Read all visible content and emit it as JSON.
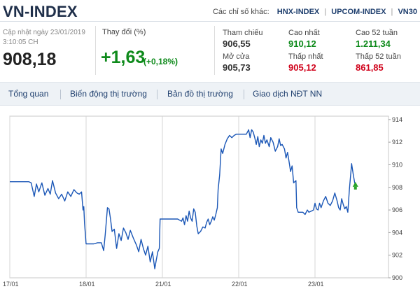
{
  "header": {
    "title": "VN-INDEX",
    "other_label": "Các chỉ số khác:",
    "links": [
      "HNX-INDEX",
      "UPCOM-INDEX",
      "VN30"
    ]
  },
  "summary": {
    "updated_line1": "Cập nhật ngày 23/01/2019",
    "updated_line2": "3:10:05 CH",
    "current_value": "908,18",
    "change_label": "Thay đổi (%)",
    "change_value": "+1,63",
    "change_pct": "(+0,18%)",
    "stats": [
      {
        "label": "Tham chiếu",
        "value": "906,55",
        "trend": "neutral"
      },
      {
        "label": "Cao nhất",
        "value": "910,12",
        "trend": "up"
      },
      {
        "label": "Cao 52 tuần",
        "value": "1.211,34",
        "trend": "up"
      },
      {
        "label": "Mở cửa",
        "value": "905,73",
        "trend": "neutral"
      },
      {
        "label": "Thấp nhất",
        "value": "905,12",
        "trend": "down"
      },
      {
        "label": "Thấp 52 tuần",
        "value": "861,85",
        "trend": "down"
      }
    ]
  },
  "tabs": [
    "Tổng quan",
    "Biến động thị trường",
    "Bản đồ thị trường",
    "Giao dịch NĐT NN"
  ],
  "colors": {
    "line": "#1a56b6",
    "up": "#0e8a1b",
    "down": "#d0021b",
    "marker": "#2aa52a"
  },
  "chart_data": {
    "type": "line",
    "x_categories": [
      "17/01",
      "18/01",
      "21/01",
      "22/01",
      "23/01"
    ],
    "yticks": [
      900,
      902,
      904,
      906,
      908,
      910,
      912,
      914
    ],
    "ylim": [
      900,
      914.3
    ],
    "grid": "vertical",
    "series": [
      {
        "values": [
          [
            0.0,
            908.5
          ],
          [
            0.05,
            908.5
          ],
          [
            0.1,
            908.5
          ],
          [
            0.15,
            908.5
          ],
          [
            0.2,
            908.5
          ],
          [
            0.25,
            908.5
          ],
          [
            0.28,
            908.4
          ],
          [
            0.32,
            907.2
          ],
          [
            0.35,
            908.3
          ],
          [
            0.38,
            907.6
          ],
          [
            0.42,
            908.4
          ],
          [
            0.46,
            907.3
          ],
          [
            0.5,
            907.9
          ],
          [
            0.53,
            907.4
          ],
          [
            0.56,
            908.6
          ],
          [
            0.6,
            907.5
          ],
          [
            0.64,
            907.0
          ],
          [
            0.68,
            907.4
          ],
          [
            0.72,
            906.8
          ],
          [
            0.76,
            907.6
          ],
          [
            0.8,
            907.2
          ],
          [
            0.84,
            907.8
          ],
          [
            0.88,
            907.5
          ],
          [
            0.91,
            907.4
          ],
          [
            0.94,
            907.6
          ],
          [
            0.96,
            906.0
          ],
          [
            0.97,
            906.3
          ],
          [
            0.98,
            904.8
          ],
          [
            1.0,
            903.0
          ],
          [
            1.02,
            903.0
          ],
          [
            1.06,
            903.0
          ],
          [
            1.1,
            903.0
          ],
          [
            1.15,
            903.1
          ],
          [
            1.2,
            903.1
          ],
          [
            1.23,
            902.4
          ],
          [
            1.25,
            903.8
          ],
          [
            1.28,
            906.2
          ],
          [
            1.3,
            906.1
          ],
          [
            1.32,
            905.2
          ],
          [
            1.34,
            904.1
          ],
          [
            1.37,
            904.3
          ],
          [
            1.4,
            902.6
          ],
          [
            1.43,
            903.9
          ],
          [
            1.46,
            903.3
          ],
          [
            1.49,
            904.4
          ],
          [
            1.52,
            904.0
          ],
          [
            1.55,
            903.4
          ],
          [
            1.58,
            904.2
          ],
          [
            1.62,
            903.5
          ],
          [
            1.66,
            902.9
          ],
          [
            1.69,
            902.3
          ],
          [
            1.72,
            903.4
          ],
          [
            1.75,
            902.6
          ],
          [
            1.78,
            902.0
          ],
          [
            1.81,
            902.8
          ],
          [
            1.84,
            901.4
          ],
          [
            1.87,
            902.3
          ],
          [
            1.9,
            900.8
          ],
          [
            1.92,
            901.6
          ],
          [
            1.94,
            902.3
          ],
          [
            1.96,
            902.6
          ],
          [
            1.97,
            905.2
          ],
          [
            2.0,
            905.2
          ],
          [
            2.05,
            905.2
          ],
          [
            2.1,
            905.2
          ],
          [
            2.15,
            905.2
          ],
          [
            2.2,
            905.2
          ],
          [
            2.25,
            905.0
          ],
          [
            2.27,
            905.3
          ],
          [
            2.29,
            904.7
          ],
          [
            2.31,
            905.5
          ],
          [
            2.33,
            905.0
          ],
          [
            2.35,
            905.9
          ],
          [
            2.37,
            905.3
          ],
          [
            2.39,
            905.0
          ],
          [
            2.41,
            906.1
          ],
          [
            2.43,
            905.8
          ],
          [
            2.45,
            904.6
          ],
          [
            2.47,
            903.9
          ],
          [
            2.5,
            904.1
          ],
          [
            2.53,
            904.5
          ],
          [
            2.56,
            904.4
          ],
          [
            2.58,
            904.9
          ],
          [
            2.6,
            905.2
          ],
          [
            2.62,
            904.7
          ],
          [
            2.64,
            905.0
          ],
          [
            2.66,
            905.4
          ],
          [
            2.68,
            905.1
          ],
          [
            2.7,
            905.6
          ],
          [
            2.72,
            906.2
          ],
          [
            2.73,
            907.8
          ],
          [
            2.75,
            909.1
          ],
          [
            2.77,
            911.4
          ],
          [
            2.79,
            911.0
          ],
          [
            2.82,
            911.8
          ],
          [
            2.85,
            912.3
          ],
          [
            2.88,
            912.6
          ],
          [
            2.91,
            912.4
          ],
          [
            2.94,
            912.6
          ],
          [
            2.97,
            912.7
          ],
          [
            3.0,
            912.7
          ],
          [
            3.05,
            912.7
          ],
          [
            3.1,
            912.7
          ],
          [
            3.13,
            913.1
          ],
          [
            3.15,
            912.4
          ],
          [
            3.17,
            913.1
          ],
          [
            3.19,
            912.9
          ],
          [
            3.21,
            912.4
          ],
          [
            3.23,
            911.8
          ],
          [
            3.25,
            912.5
          ],
          [
            3.27,
            911.6
          ],
          [
            3.29,
            912.2
          ],
          [
            3.31,
            911.9
          ],
          [
            3.33,
            912.6
          ],
          [
            3.35,
            911.9
          ],
          [
            3.37,
            912.2
          ],
          [
            3.4,
            911.6
          ],
          [
            3.42,
            912.4
          ],
          [
            3.45,
            912.0
          ],
          [
            3.48,
            911.2
          ],
          [
            3.51,
            911.6
          ],
          [
            3.53,
            912.3
          ],
          [
            3.55,
            911.7
          ],
          [
            3.57,
            911.8
          ],
          [
            3.6,
            911.4
          ],
          [
            3.62,
            910.6
          ],
          [
            3.64,
            911.1
          ],
          [
            3.66,
            910.3
          ],
          [
            3.68,
            909.4
          ],
          [
            3.7,
            909.9
          ],
          [
            3.72,
            908.4
          ],
          [
            3.75,
            908.6
          ],
          [
            3.76,
            906.2
          ],
          [
            3.78,
            905.8
          ],
          [
            3.81,
            905.8
          ],
          [
            3.84,
            905.8
          ],
          [
            3.87,
            905.6
          ],
          [
            3.9,
            906.0
          ],
          [
            3.92,
            905.8
          ],
          [
            3.95,
            905.9
          ],
          [
            3.98,
            906.0
          ],
          [
            4.0,
            906.6
          ],
          [
            4.02,
            906.1
          ],
          [
            4.04,
            906.0
          ],
          [
            4.06,
            906.6
          ],
          [
            4.08,
            906.2
          ],
          [
            4.11,
            906.8
          ],
          [
            4.14,
            907.2
          ],
          [
            4.17,
            906.6
          ],
          [
            4.2,
            906.4
          ],
          [
            4.23,
            906.8
          ],
          [
            4.26,
            907.5
          ],
          [
            4.29,
            906.8
          ],
          [
            4.31,
            906.2
          ],
          [
            4.33,
            906.0
          ],
          [
            4.35,
            907.0
          ],
          [
            4.37,
            906.5
          ],
          [
            4.39,
            906.1
          ],
          [
            4.41,
            906.3
          ],
          [
            4.43,
            905.8
          ],
          [
            4.45,
            907.8
          ],
          [
            4.47,
            909.3
          ],
          [
            4.48,
            910.1
          ],
          [
            4.5,
            909.2
          ],
          [
            4.52,
            908.4
          ],
          [
            4.53,
            908.18
          ]
        ]
      }
    ]
  }
}
